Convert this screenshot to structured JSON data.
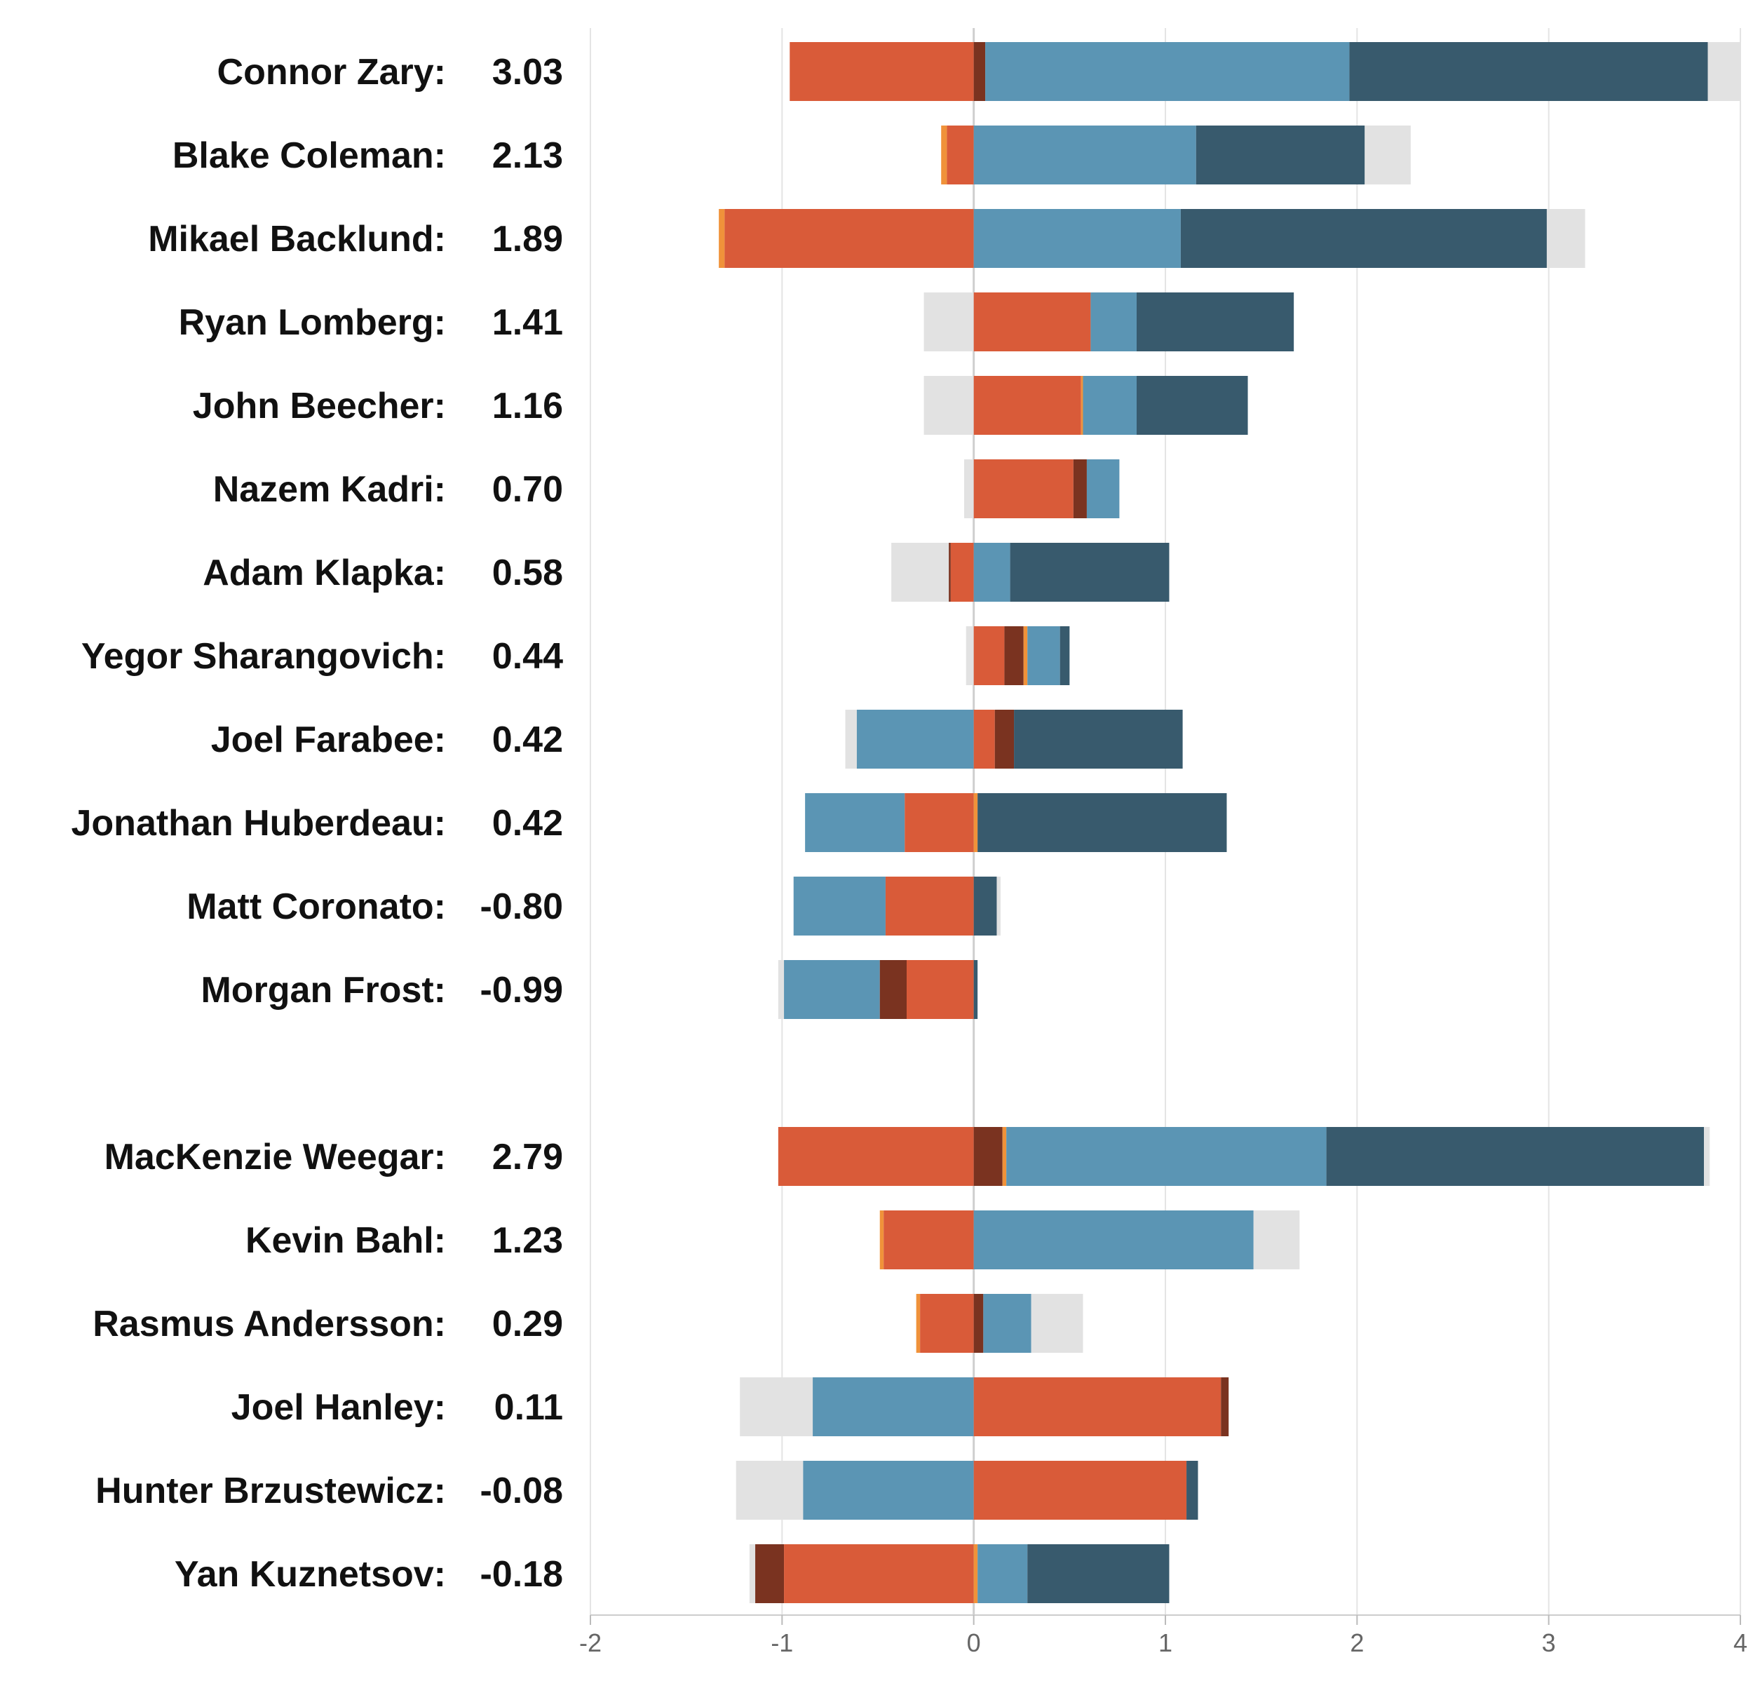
{
  "chart_data": {
    "type": "bar",
    "orientation": "horizontal",
    "stacked": true,
    "diverging": true,
    "xlim": [
      -2,
      4
    ],
    "x_ticks": [
      "-2",
      "-1",
      "0",
      "1",
      "2",
      "3",
      "4"
    ],
    "grid": true,
    "colors": {
      "orange_red": "#d95b39",
      "dark_brown": "#7a3320",
      "light_orange": "#f0923a",
      "steel_blue": "#5b95b4",
      "dark_slate": "#385a6d",
      "light_gray": "#e2e2e2"
    },
    "groups": [
      {
        "rows": [
          {
            "name": "Connor Zary:",
            "value": "3.03",
            "segments": [
              {
                "color": "orange_red",
                "from": -0.96,
                "to": 0
              },
              {
                "color": "dark_brown",
                "from": 0,
                "to": 0.06
              },
              {
                "color": "steel_blue",
                "from": 0.06,
                "to": 1.96
              },
              {
                "color": "dark_slate",
                "from": 1.96,
                "to": 3.83
              },
              {
                "color": "light_gray",
                "from": 3.83,
                "to": 4.0
              }
            ]
          },
          {
            "name": "Blake Coleman:",
            "value": "2.13",
            "segments": [
              {
                "color": "light_orange",
                "from": -0.17,
                "to": -0.14
              },
              {
                "color": "orange_red",
                "from": -0.14,
                "to": 0
              },
              {
                "color": "steel_blue",
                "from": 0,
                "to": 1.16
              },
              {
                "color": "dark_slate",
                "from": 1.16,
                "to": 2.04
              },
              {
                "color": "light_gray",
                "from": 2.04,
                "to": 2.28
              }
            ]
          },
          {
            "name": "Mikael Backlund:",
            "value": "1.89",
            "segments": [
              {
                "color": "light_orange",
                "from": -1.33,
                "to": -1.3
              },
              {
                "color": "orange_red",
                "from": -1.3,
                "to": 0
              },
              {
                "color": "steel_blue",
                "from": 0,
                "to": 1.08
              },
              {
                "color": "dark_slate",
                "from": 1.08,
                "to": 2.99
              },
              {
                "color": "light_gray",
                "from": 2.99,
                "to": 3.19
              }
            ]
          },
          {
            "name": "Ryan Lomberg:",
            "value": "1.41",
            "segments": [
              {
                "color": "light_gray",
                "from": -0.26,
                "to": 0
              },
              {
                "color": "orange_red",
                "from": 0,
                "to": 0.61
              },
              {
                "color": "steel_blue",
                "from": 0.61,
                "to": 0.85
              },
              {
                "color": "dark_slate",
                "from": 0.85,
                "to": 1.67
              }
            ]
          },
          {
            "name": "John Beecher:",
            "value": "1.16",
            "segments": [
              {
                "color": "light_gray",
                "from": -0.26,
                "to": 0
              },
              {
                "color": "orange_red",
                "from": 0,
                "to": 0.56
              },
              {
                "color": "light_orange",
                "from": 0.56,
                "to": 0.57
              },
              {
                "color": "steel_blue",
                "from": 0.57,
                "to": 0.85
              },
              {
                "color": "dark_slate",
                "from": 0.85,
                "to": 1.43
              }
            ]
          },
          {
            "name": "Nazem Kadri:",
            "value": "0.70",
            "segments": [
              {
                "color": "light_gray",
                "from": -0.05,
                "to": 0
              },
              {
                "color": "orange_red",
                "from": 0,
                "to": 0.52
              },
              {
                "color": "dark_brown",
                "from": 0.52,
                "to": 0.59
              },
              {
                "color": "steel_blue",
                "from": 0.59,
                "to": 0.76
              }
            ]
          },
          {
            "name": "Adam Klapka:",
            "value": "0.58",
            "segments": [
              {
                "color": "light_gray",
                "from": -0.43,
                "to": -0.13
              },
              {
                "color": "dark_brown",
                "from": -0.13,
                "to": -0.12
              },
              {
                "color": "orange_red",
                "from": -0.12,
                "to": 0
              },
              {
                "color": "steel_blue",
                "from": 0,
                "to": 0.19
              },
              {
                "color": "dark_slate",
                "from": 0.19,
                "to": 1.02
              }
            ]
          },
          {
            "name": "Yegor Sharangovich:",
            "value": "0.44",
            "segments": [
              {
                "color": "light_gray",
                "from": -0.04,
                "to": 0
              },
              {
                "color": "orange_red",
                "from": 0,
                "to": 0.16
              },
              {
                "color": "dark_brown",
                "from": 0.16,
                "to": 0.26
              },
              {
                "color": "light_orange",
                "from": 0.26,
                "to": 0.28
              },
              {
                "color": "steel_blue",
                "from": 0.28,
                "to": 0.45
              },
              {
                "color": "dark_slate",
                "from": 0.45,
                "to": 0.5
              }
            ]
          },
          {
            "name": "Joel Farabee:",
            "value": "0.42",
            "segments": [
              {
                "color": "light_gray",
                "from": -0.67,
                "to": -0.61
              },
              {
                "color": "steel_blue",
                "from": -0.61,
                "to": 0
              },
              {
                "color": "orange_red",
                "from": 0,
                "to": 0.11
              },
              {
                "color": "dark_brown",
                "from": 0.11,
                "to": 0.21
              },
              {
                "color": "dark_slate",
                "from": 0.21,
                "to": 1.09
              }
            ]
          },
          {
            "name": "Jonathan Huberdeau:",
            "value": "0.42",
            "segments": [
              {
                "color": "steel_blue",
                "from": -0.88,
                "to": -0.36
              },
              {
                "color": "orange_red",
                "from": -0.36,
                "to": 0
              },
              {
                "color": "light_orange",
                "from": 0,
                "to": 0.02
              },
              {
                "color": "dark_slate",
                "from": 0.02,
                "to": 1.32
              }
            ]
          },
          {
            "name": "Matt Coronato:",
            "value": "-0.80",
            "segments": [
              {
                "color": "steel_blue",
                "from": -0.94,
                "to": -0.46
              },
              {
                "color": "orange_red",
                "from": -0.46,
                "to": 0
              },
              {
                "color": "dark_slate",
                "from": 0,
                "to": 0.12
              },
              {
                "color": "light_gray",
                "from": 0.12,
                "to": 0.14
              }
            ]
          },
          {
            "name": "Morgan Frost:",
            "value": "-0.99",
            "segments": [
              {
                "color": "light_gray",
                "from": -1.02,
                "to": -0.99
              },
              {
                "color": "steel_blue",
                "from": -0.99,
                "to": -0.49
              },
              {
                "color": "dark_brown",
                "from": -0.49,
                "to": -0.35
              },
              {
                "color": "orange_red",
                "from": -0.35,
                "to": 0
              },
              {
                "color": "dark_slate",
                "from": 0,
                "to": 0.02
              }
            ]
          }
        ]
      },
      {
        "rows": [
          {
            "name": "MacKenzie Weegar:",
            "value": "2.79",
            "segments": [
              {
                "color": "orange_red",
                "from": -1.02,
                "to": 0
              },
              {
                "color": "dark_brown",
                "from": 0,
                "to": 0.15
              },
              {
                "color": "light_orange",
                "from": 0.15,
                "to": 0.17
              },
              {
                "color": "steel_blue",
                "from": 0.17,
                "to": 1.84
              },
              {
                "color": "dark_slate",
                "from": 1.84,
                "to": 3.81
              },
              {
                "color": "light_gray",
                "from": 3.81,
                "to": 3.84
              }
            ]
          },
          {
            "name": "Kevin Bahl:",
            "value": "1.23",
            "segments": [
              {
                "color": "light_orange",
                "from": -0.49,
                "to": -0.47
              },
              {
                "color": "orange_red",
                "from": -0.47,
                "to": 0
              },
              {
                "color": "steel_blue",
                "from": 0,
                "to": 1.46
              },
              {
                "color": "light_gray",
                "from": 1.46,
                "to": 1.7
              }
            ]
          },
          {
            "name": "Rasmus Andersson:",
            "value": "0.29",
            "segments": [
              {
                "color": "light_orange",
                "from": -0.3,
                "to": -0.28
              },
              {
                "color": "orange_red",
                "from": -0.28,
                "to": 0
              },
              {
                "color": "dark_brown",
                "from": 0,
                "to": 0.05
              },
              {
                "color": "steel_blue",
                "from": 0.05,
                "to": 0.3
              },
              {
                "color": "light_gray",
                "from": 0.3,
                "to": 0.57
              }
            ]
          },
          {
            "name": "Joel Hanley:",
            "value": "0.11",
            "segments": [
              {
                "color": "light_gray",
                "from": -1.22,
                "to": -0.84
              },
              {
                "color": "steel_blue",
                "from": -0.84,
                "to": 0
              },
              {
                "color": "orange_red",
                "from": 0,
                "to": 1.29
              },
              {
                "color": "dark_brown",
                "from": 1.29,
                "to": 1.33
              }
            ]
          },
          {
            "name": "Hunter Brzustewicz:",
            "value": "-0.08",
            "segments": [
              {
                "color": "light_gray",
                "from": -1.24,
                "to": -0.89
              },
              {
                "color": "steel_blue",
                "from": -0.89,
                "to": 0
              },
              {
                "color": "orange_red",
                "from": 0,
                "to": 1.11
              },
              {
                "color": "dark_slate",
                "from": 1.11,
                "to": 1.17
              }
            ]
          },
          {
            "name": "Yan Kuznetsov:",
            "value": "-0.18",
            "segments": [
              {
                "color": "light_gray",
                "from": -1.17,
                "to": -1.14
              },
              {
                "color": "dark_brown",
                "from": -1.14,
                "to": -0.99
              },
              {
                "color": "orange_red",
                "from": -0.99,
                "to": 0
              },
              {
                "color": "light_orange",
                "from": 0,
                "to": 0.02
              },
              {
                "color": "steel_blue",
                "from": 0.02,
                "to": 0.28
              },
              {
                "color": "dark_slate",
                "from": 0.28,
                "to": 1.02
              }
            ]
          }
        ]
      }
    ]
  }
}
